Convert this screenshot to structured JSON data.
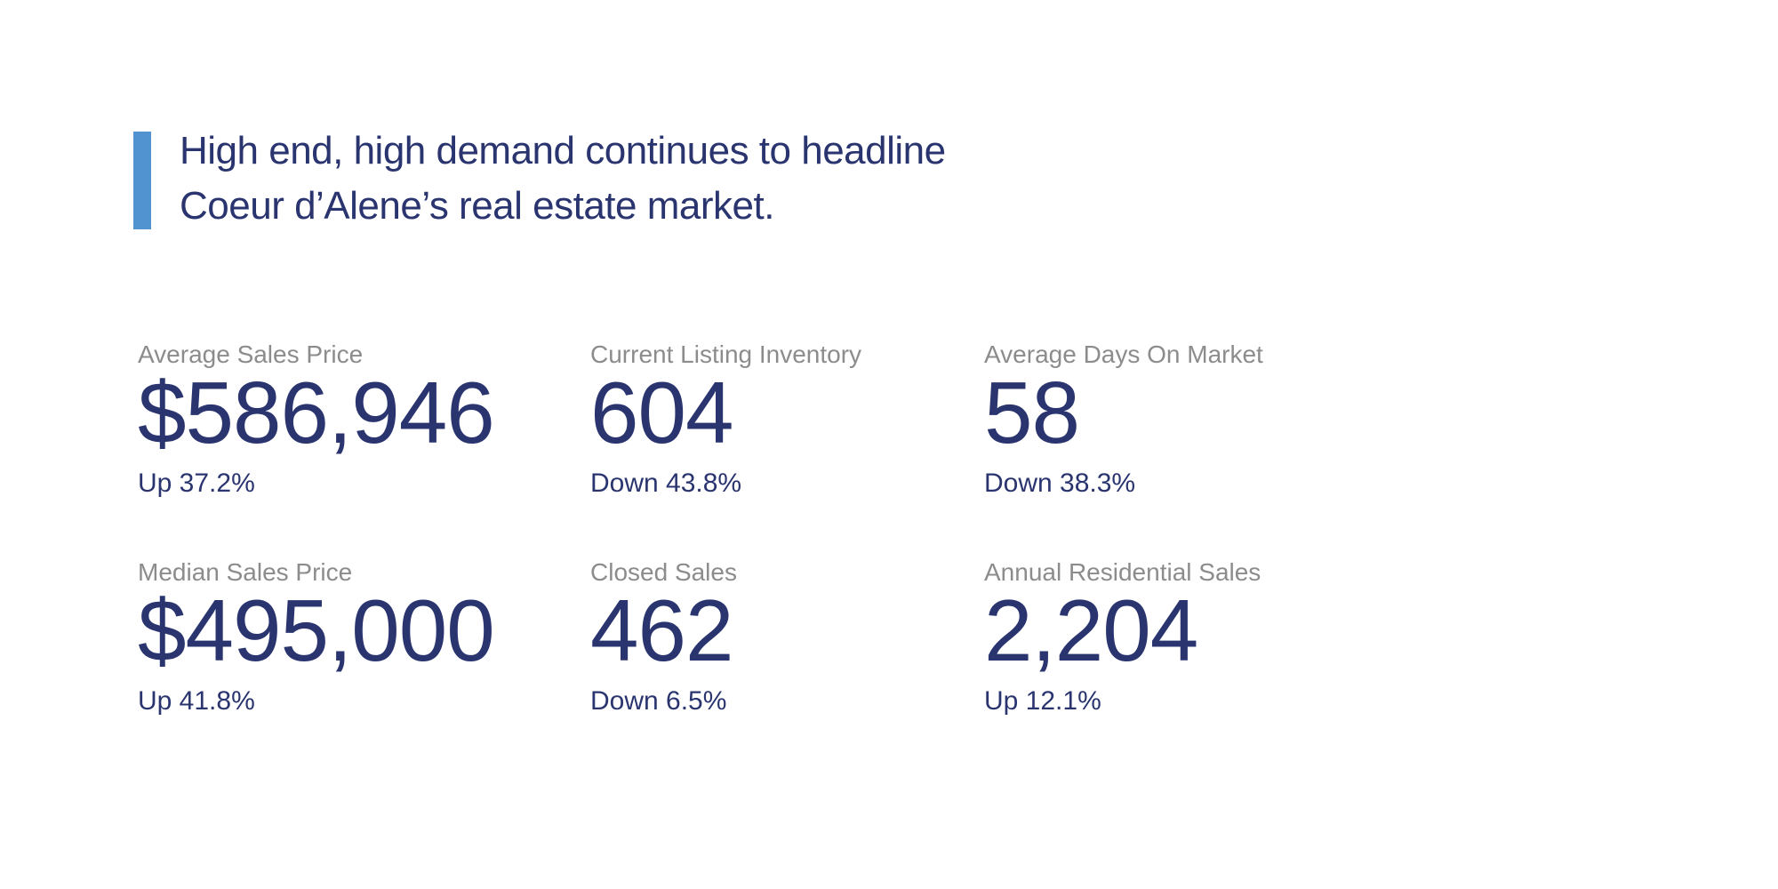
{
  "colors": {
    "navy": "#2a3570",
    "label_gray": "#8c8c8c",
    "accent_blue": "#5193d1",
    "background": "#ffffff"
  },
  "headline": {
    "line1": "High end, high demand continues to headline",
    "line2": "Coeur d’Alene’s real estate market."
  },
  "stats": {
    "items": [
      {
        "label": "Average Sales Price",
        "value": "$586,946",
        "change": "Up 37.2%"
      },
      {
        "label": "Current Listing Inventory",
        "value": "604",
        "change": "Down 43.8%"
      },
      {
        "label": "Average Days On Market",
        "value": "58",
        "change": "Down 38.3%"
      },
      {
        "label": "Median Sales Price",
        "value": "$495,000",
        "change": "Up 41.8%"
      },
      {
        "label": "Closed Sales",
        "value": "462",
        "change": "Down 6.5%"
      },
      {
        "label": "Annual Residential Sales",
        "value": "2,204",
        "change": "Up 12.1%"
      }
    ]
  }
}
